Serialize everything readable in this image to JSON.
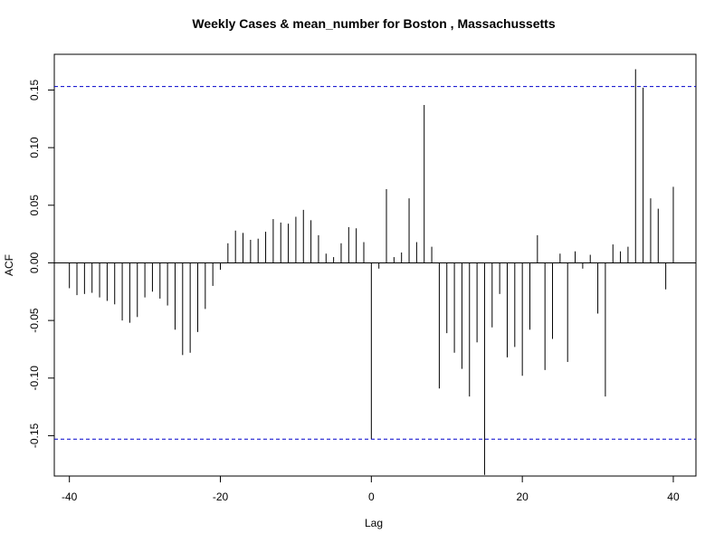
{
  "chart_data": {
    "type": "bar",
    "title": "Weekly Cases & mean_number for Boston , Massachussetts",
    "xlabel": "Lag",
    "ylabel": "ACF",
    "xlim": [
      -42,
      43
    ],
    "ylim": [
      -0.185,
      0.181
    ],
    "x_ticks": [
      -40,
      -20,
      0,
      20,
      40
    ],
    "x_tick_labels": [
      "-40",
      "-20",
      "0",
      "20",
      "40"
    ],
    "y_ticks": [
      -0.15,
      -0.1,
      -0.05,
      0.0,
      0.05,
      0.1,
      0.15
    ],
    "y_tick_labels": [
      "-0.15",
      "-0.10",
      "-0.05",
      "0.00",
      "0.05",
      "0.10",
      "0.15"
    ],
    "confidence_bound": 0.153,
    "colors": {
      "bars": "#000000",
      "bounds": "#0000cc",
      "zero_line": "#000000"
    },
    "lags": [
      -40,
      -39,
      -38,
      -37,
      -36,
      -35,
      -34,
      -33,
      -32,
      -31,
      -30,
      -29,
      -28,
      -27,
      -26,
      -25,
      -24,
      -23,
      -22,
      -21,
      -20,
      -19,
      -18,
      -17,
      -16,
      -15,
      -14,
      -13,
      -12,
      -11,
      -10,
      -9,
      -8,
      -7,
      -6,
      -5,
      -4,
      -3,
      -2,
      -1,
      0,
      1,
      2,
      3,
      4,
      5,
      6,
      7,
      8,
      9,
      10,
      11,
      12,
      13,
      14,
      15,
      16,
      17,
      18,
      19,
      20,
      21,
      22,
      23,
      24,
      25,
      26,
      27,
      28,
      29,
      30,
      31,
      32,
      33,
      34,
      35,
      36,
      37,
      38,
      39,
      40
    ],
    "values": [
      -0.022,
      -0.028,
      -0.027,
      -0.026,
      -0.03,
      -0.033,
      -0.036,
      -0.05,
      -0.052,
      -0.047,
      -0.03,
      -0.025,
      -0.031,
      -0.037,
      -0.058,
      -0.08,
      -0.078,
      -0.06,
      -0.04,
      -0.02,
      -0.006,
      0.017,
      0.028,
      0.026,
      0.02,
      0.021,
      0.027,
      0.038,
      0.035,
      0.034,
      0.04,
      0.046,
      0.037,
      0.024,
      0.008,
      0.005,
      0.017,
      0.031,
      0.03,
      0.018,
      -0.153,
      -0.005,
      0.064,
      0.005,
      0.009,
      0.056,
      0.018,
      0.137,
      0.014,
      -0.109,
      -0.061,
      -0.078,
      -0.092,
      -0.116,
      -0.069,
      -0.184,
      -0.056,
      -0.027,
      -0.082,
      -0.073,
      -0.098,
      -0.058,
      0.024,
      -0.093,
      -0.066,
      0.008,
      -0.086,
      0.01,
      -0.005,
      0.007,
      -0.044,
      -0.116,
      0.016,
      0.01,
      0.014,
      0.168,
      0.152,
      0.056,
      0.047,
      -0.023,
      0.066
    ]
  }
}
